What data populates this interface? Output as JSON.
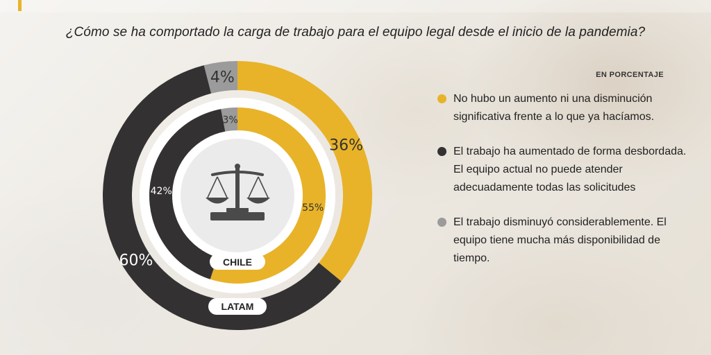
{
  "title": "¿Cómo se ha comportado la carga de trabajo para el equipo legal desde el inicio de la pandemia?",
  "unit_label": "EN PORCENTAJE",
  "colors": {
    "yellow": "#e8b329",
    "dark": "#333132",
    "gray": "#9b9b9b",
    "accent": "#e8b329"
  },
  "legend": [
    {
      "color": "#e8b329",
      "text": "No hubo un aumento ni una disminución significativa frente a lo que ya hacíamos."
    },
    {
      "color": "#333132",
      "text": "El trabajo ha aumentado de forma desbordada. El equipo actual no puede atender adecuadamente todas las solicitudes"
    },
    {
      "color": "#9b9b9b",
      "text": "El trabajo disminuyó considerablemente. El equipo tiene mucha más disponibilidad de tiempo."
    }
  ],
  "center_icon": "scales-of-justice-icon",
  "chart_data": {
    "type": "pie",
    "variant": "concentric-donut",
    "series": [
      {
        "name": "LATAM",
        "ring": "outer",
        "values": [
          36,
          60,
          4
        ],
        "labels": [
          "36%",
          "60%",
          "4%"
        ],
        "colors": [
          "#e8b329",
          "#333132",
          "#9b9b9b"
        ]
      },
      {
        "name": "CHILE",
        "ring": "inner",
        "values": [
          55,
          42,
          3
        ],
        "labels": [
          "55%",
          "42%",
          "3%"
        ],
        "colors": [
          "#e8b329",
          "#333132",
          "#9b9b9b"
        ]
      }
    ]
  }
}
